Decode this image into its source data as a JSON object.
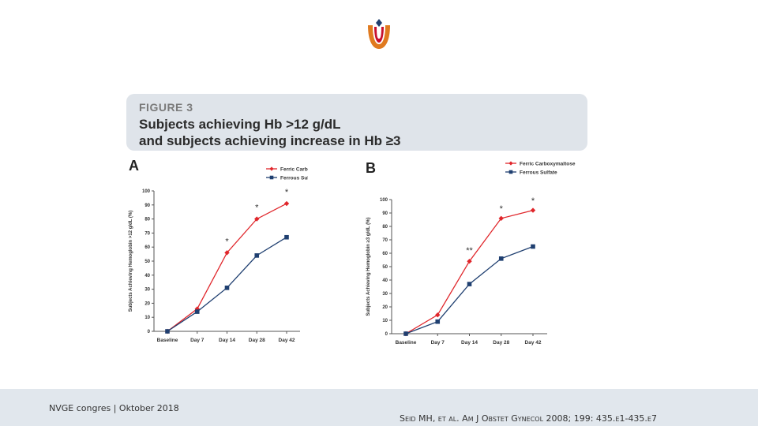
{
  "figure": {
    "label": "FIGURE 3",
    "title_line1": "Subjects achieving Hb >12 g/dL",
    "title_line2": "and subjects achieving increase in Hb ≥3"
  },
  "footer": {
    "left": "NVGE congres | Oktober 2018",
    "right": "Seid MH, et al. Am J Obstet Gynecol 2008; 199: 435.e1-435.e7"
  },
  "colors": {
    "fcm": "#e0262b",
    "fs": "#1f3f70",
    "axis": "#555555",
    "header_bg": "#dfe4ea",
    "footer_bg": "#e1e7ed"
  },
  "chart_data": [
    {
      "panel": "A",
      "type": "line",
      "categories": [
        "Baseline",
        "Day 7",
        "Day 14",
        "Day 28",
        "Day 42"
      ],
      "ylabel": "Subjects Achieving Hemoglobin >12 g/dL (%)",
      "ylim": [
        0,
        100
      ],
      "yticks": [
        0,
        10,
        20,
        30,
        40,
        50,
        60,
        70,
        80,
        90,
        100
      ],
      "legend_position": "top-right",
      "series": [
        {
          "name": "Ferric Carboxymaltose",
          "values": [
            0,
            16,
            56,
            80,
            91
          ],
          "marker": "diamond"
        },
        {
          "name": "Ferrous Sulfate",
          "values": [
            0,
            14,
            31,
            54,
            67
          ],
          "marker": "square"
        }
      ],
      "annotations": [
        {
          "text": "*",
          "category": 2,
          "value": 65
        },
        {
          "text": "*",
          "category": 3,
          "value": 89
        },
        {
          "text": "*",
          "category": 4,
          "value": 100
        }
      ]
    },
    {
      "panel": "B",
      "type": "line",
      "categories": [
        "Baseline",
        "Day 7",
        "Day 14",
        "Day 28",
        "Day 42"
      ],
      "ylabel": "Subjects Achieving Hemoglobin ≥3 g/dL (%)",
      "ylim": [
        0,
        100
      ],
      "yticks": [
        0,
        10,
        20,
        30,
        40,
        50,
        60,
        70,
        80,
        90,
        100
      ],
      "legend_position": "top-right",
      "series": [
        {
          "name": "Ferric Carboxymaltose",
          "values": [
            0,
            14,
            54,
            86,
            92
          ],
          "marker": "diamond"
        },
        {
          "name": "Ferrous Sulfate",
          "values": [
            0,
            9,
            37,
            56,
            65
          ],
          "marker": "square"
        }
      ],
      "annotations": [
        {
          "text": "**",
          "category": 2,
          "value": 63
        },
        {
          "text": "*",
          "category": 3,
          "value": 94
        },
        {
          "text": "*",
          "category": 4,
          "value": 100
        }
      ]
    }
  ]
}
